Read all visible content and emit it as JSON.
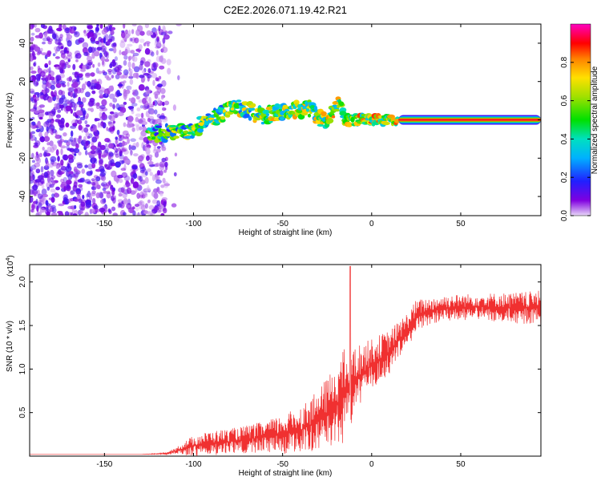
{
  "title": "C2E2.2026.071.19.42.R21",
  "colors": {
    "snr_line": "#f03030",
    "axis": "#000000"
  },
  "chart_data": [
    {
      "type": "heatmap",
      "xlabel": "Height of straight line (km)",
      "ylabel": "Frequency (Hz)",
      "xlim": [
        -192,
        95
      ],
      "ylim": [
        -50,
        50
      ],
      "x_ticks": [
        -150,
        -100,
        -50,
        0,
        50
      ],
      "y_ticks": [
        -40,
        -20,
        0,
        20,
        40
      ],
      "colorbar": {
        "label": "Normalized spectral amplitude",
        "range": [
          0,
          1
        ],
        "ticks": [
          "0.0",
          "0.2",
          "0.4",
          "0.6",
          "0.8"
        ],
        "tick_values": [
          0,
          0.2,
          0.4,
          0.6,
          0.8
        ],
        "colormap": "rainbow (violet-blue-cyan-green-yellow-red-magenta)"
      },
      "features": [
        {
          "region": "noise",
          "x_range": [
            -192,
            -115
          ],
          "freq_range": [
            -50,
            50
          ],
          "amplitude": 0.1
        },
        {
          "region": "ridge",
          "points": [
            [
              -125,
              -8
            ],
            [
              -100,
              -5
            ],
            [
              -85,
              3
            ],
            [
              -75,
              7
            ],
            [
              -62,
              2
            ],
            [
              -45,
              5
            ],
            [
              -35,
              6
            ],
            [
              -25,
              -2
            ],
            [
              -18,
              10
            ],
            [
              -15,
              0
            ],
            [
              0,
              0
            ],
            [
              15,
              0
            ],
            [
              95,
              0
            ]
          ],
          "amplitude_start": 0.3,
          "amplitude_end": 0.95
        }
      ]
    },
    {
      "type": "line",
      "xlabel": "Height of straight line (km)",
      "ylabel": "SNR (10 * v/v)",
      "multiplier": "(x10",
      "multiplier_exp": "4",
      "xlim": [
        -192,
        95
      ],
      "ylim": [
        0,
        2.2
      ],
      "x_ticks": [
        -150,
        -100,
        -50,
        0,
        50
      ],
      "y_ticks": [
        "0.5",
        "1.0",
        "1.5",
        "2.0"
      ],
      "y_tick_values": [
        0.5,
        1.0,
        1.5,
        2.0
      ],
      "series": [
        {
          "x": [
            -192,
            -130,
            -115,
            -110,
            -100,
            -90,
            -75,
            -60,
            -50,
            -40,
            -30,
            -22,
            -15,
            -10,
            -5,
            0,
            10,
            20,
            25,
            30,
            40,
            60,
            80,
            95
          ],
          "y_mean": [
            0.02,
            0.02,
            0.03,
            0.06,
            0.12,
            0.15,
            0.18,
            0.22,
            0.25,
            0.3,
            0.4,
            0.55,
            0.7,
            0.85,
            0.95,
            1.05,
            1.2,
            1.45,
            1.6,
            1.65,
            1.7,
            1.72,
            1.7,
            1.7
          ],
          "y_spread": [
            0.0,
            0.0,
            0.01,
            0.04,
            0.12,
            0.14,
            0.15,
            0.18,
            0.22,
            0.28,
            0.35,
            0.45,
            0.55,
            0.4,
            0.35,
            0.3,
            0.25,
            0.2,
            0.2,
            0.16,
            0.15,
            0.15,
            0.18,
            0.2
          ],
          "peak": [
            -12,
            2.18
          ]
        }
      ]
    }
  ]
}
